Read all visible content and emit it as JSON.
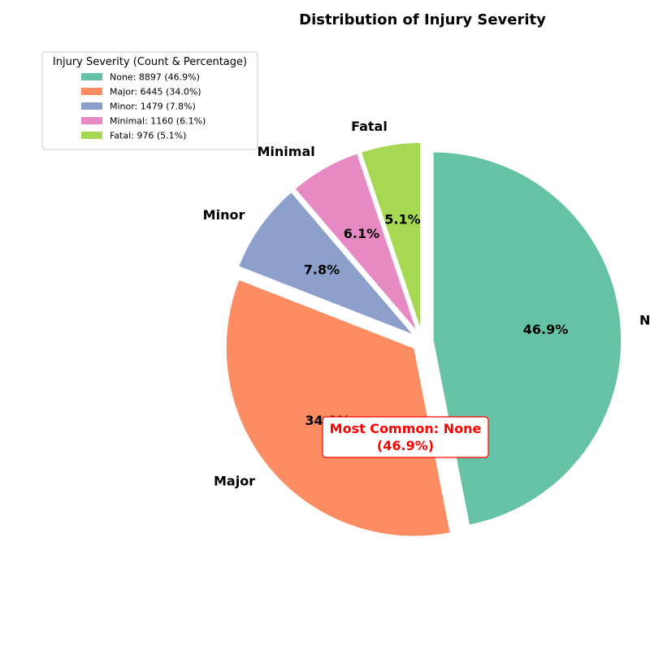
{
  "chart_data": {
    "type": "pie",
    "title": "Distribution of Injury Severity",
    "categories": [
      "None",
      "Major",
      "Minor",
      "Minimal",
      "Fatal"
    ],
    "values": [
      8897,
      6445,
      1479,
      1160,
      976
    ],
    "percent_labels": [
      "46.9%",
      "34.0%",
      "7.8%",
      "6.1%",
      "5.1%"
    ],
    "colors": [
      "#66c2a5",
      "#fc8d62",
      "#8da0cb",
      "#e78ac3",
      "#a6d854"
    ],
    "exploded": [
      "None",
      "Major",
      "Minor",
      "Minimal",
      "Fatal"
    ],
    "start_angle_deg": 90,
    "direction": "clockwise",
    "legend": {
      "title": "Injury Severity (Count & Percentage)",
      "placement": "top-left",
      "entries": [
        "None: 8897 (46.9%)",
        "Major: 6445 (34.0%)",
        "Minor: 1479 (7.8%)",
        "Minimal: 1160 (6.1%)",
        "Fatal: 976 (5.1%)"
      ]
    },
    "annotation": {
      "line1": "Most Common: None",
      "line2": "(46.9%)",
      "color": "#ff0000"
    }
  }
}
